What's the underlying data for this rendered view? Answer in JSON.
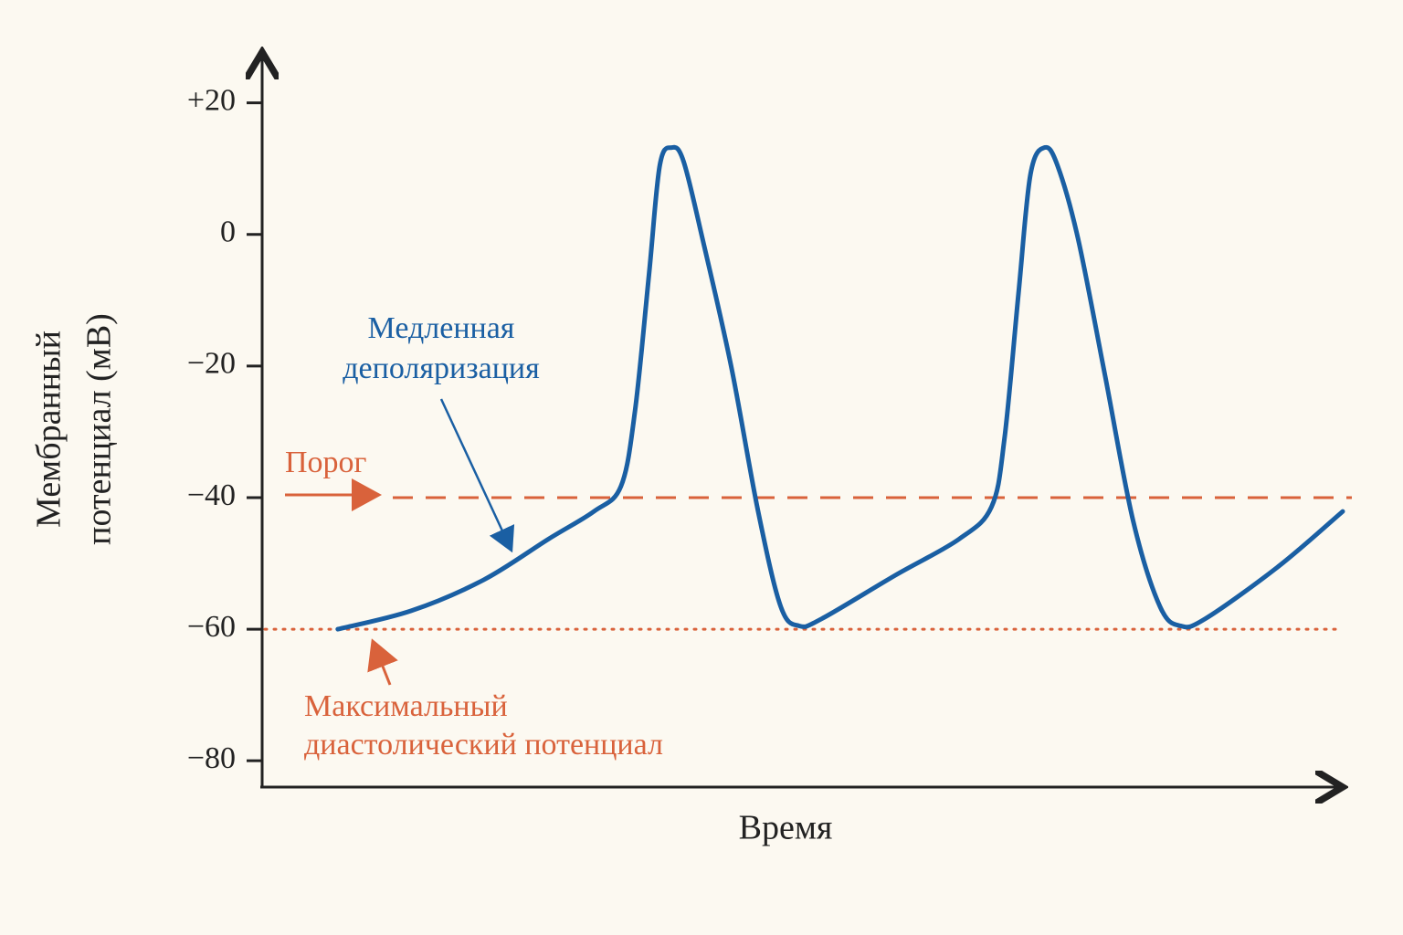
{
  "chart_data": {
    "type": "line",
    "x_label": "Время",
    "y_label": [
      "Мембранный",
      "потенциал (мВ)"
    ],
    "xlim": [
      0,
      100
    ],
    "ylim": [
      -84,
      28
    ],
    "yticks": [
      {
        "value": 20,
        "label": "+20"
      },
      0,
      {
        "value": -20,
        "label": "−20"
      },
      {
        "value": -40,
        "label": "−40"
      },
      {
        "value": -60,
        "label": "−60"
      },
      {
        "value": -80,
        "label": "−80"
      }
    ],
    "grid": false,
    "x": [
      7.0,
      13.8,
      20.5,
      26.5,
      30.7,
      33.2,
      34.5,
      35.8,
      36.8,
      37.9,
      39.0,
      40.8,
      43.4,
      45.9,
      48.0,
      49.7,
      51.8,
      58.6,
      64.5,
      67.5,
      68.7,
      70.0,
      71.1,
      72.4,
      73.6,
      75.5,
      78.0,
      80.6,
      83.1,
      85.0,
      87.3,
      94.1,
      100
    ],
    "series": [
      {
        "name": "Мембранный потенциал",
        "color": "#1a5fa3",
        "values": [
          -60,
          -57.2,
          -52.5,
          -46.3,
          -42.1,
          -38.3,
          -26.9,
          -6.1,
          10.5,
          13.2,
          11.1,
          -1.0,
          -20,
          -42.1,
          -56.6,
          -59.5,
          -58.4,
          -51.8,
          -46.3,
          -41.4,
          -31.0,
          -8.9,
          9.1,
          13.2,
          10.5,
          -0.6,
          -21.4,
          -43.5,
          -56.6,
          -59.5,
          -58.4,
          -50.4,
          -42.1
        ]
      }
    ],
    "threshold": {
      "value": -40,
      "label": "Порог",
      "color": "#d9623b"
    },
    "mdp": {
      "value": -60,
      "label": [
        "Максимальный",
        "диастолический потенциал"
      ],
      "color": "#d9623b"
    },
    "annotation": {
      "label": [
        "Медленная",
        "деполяризация"
      ],
      "color": "#1a5fa3"
    }
  }
}
